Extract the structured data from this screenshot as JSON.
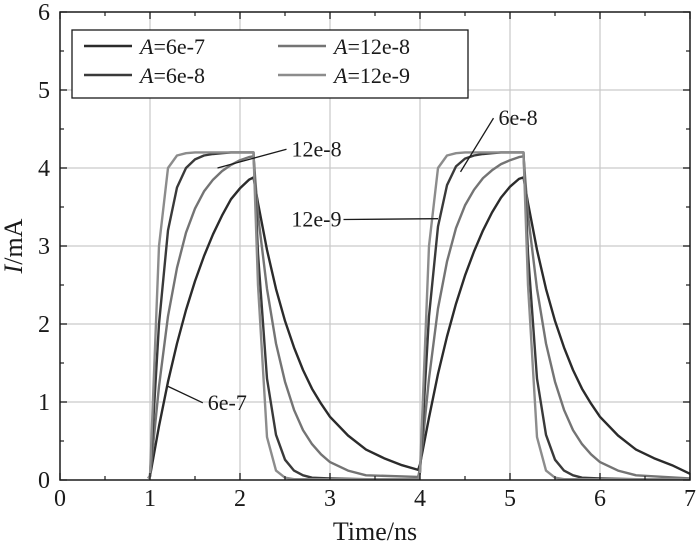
{
  "chart_data": {
    "type": "line",
    "title": "",
    "xlabel": "Time/ns",
    "ylabel_italic": "I",
    "ylabel_unit": "/mA",
    "xlim": [
      0,
      7
    ],
    "ylim": [
      0,
      6
    ],
    "x_ticks": [
      "0",
      "1",
      "2",
      "3",
      "4",
      "5",
      "6",
      "7"
    ],
    "y_ticks": [
      "0",
      "1",
      "2",
      "3",
      "4",
      "5",
      "6"
    ],
    "grid": true,
    "legend_placement": "top-left",
    "series": [
      {
        "name_var": "A",
        "name_val": "=6e-7",
        "color": "#2b2b2b",
        "x": [
          0.98,
          1.0,
          1.1,
          1.2,
          1.3,
          1.4,
          1.5,
          1.6,
          1.7,
          1.8,
          1.9,
          2.0,
          2.1,
          2.15,
          2.2,
          2.3,
          2.4,
          2.5,
          2.6,
          2.7,
          2.8,
          2.9,
          3.0,
          3.2,
          3.4,
          3.6,
          3.8,
          3.98,
          4.0,
          4.1,
          4.2,
          4.3,
          4.4,
          4.5,
          4.6,
          4.7,
          4.8,
          4.9,
          5.0,
          5.1,
          5.15,
          5.2,
          5.3,
          5.4,
          5.5,
          5.6,
          5.7,
          5.8,
          5.9,
          6.0,
          6.2,
          6.4,
          6.6,
          6.8,
          7.0
        ],
        "y": [
          0.02,
          0.05,
          0.69,
          1.26,
          1.75,
          2.18,
          2.55,
          2.87,
          3.15,
          3.39,
          3.6,
          3.74,
          3.85,
          3.88,
          3.55,
          2.95,
          2.45,
          2.04,
          1.7,
          1.41,
          1.17,
          0.98,
          0.81,
          0.57,
          0.39,
          0.28,
          0.19,
          0.13,
          0.2,
          0.8,
          1.36,
          1.84,
          2.26,
          2.62,
          2.93,
          3.2,
          3.43,
          3.62,
          3.76,
          3.86,
          3.88,
          3.55,
          2.95,
          2.45,
          2.04,
          1.7,
          1.41,
          1.17,
          0.98,
          0.81,
          0.57,
          0.39,
          0.28,
          0.19,
          0.08
        ]
      },
      {
        "name_var": "A",
        "name_val": "=12e-8",
        "color": "#747474",
        "x": [
          0.98,
          1.0,
          1.1,
          1.2,
          1.3,
          1.4,
          1.5,
          1.6,
          1.7,
          1.8,
          1.9,
          2.0,
          2.1,
          2.15,
          2.2,
          2.3,
          2.4,
          2.5,
          2.6,
          2.7,
          2.8,
          2.9,
          3.0,
          3.2,
          3.4,
          3.98,
          4.0,
          4.1,
          4.2,
          4.3,
          4.4,
          4.5,
          4.6,
          4.7,
          4.8,
          4.9,
          5.0,
          5.1,
          5.15,
          5.2,
          5.3,
          5.4,
          5.5,
          5.6,
          5.7,
          5.8,
          5.9,
          6.0,
          6.2,
          6.4,
          7.0
        ],
        "y": [
          0.02,
          0.05,
          1.2,
          2.1,
          2.72,
          3.17,
          3.48,
          3.7,
          3.85,
          3.96,
          4.04,
          4.1,
          4.14,
          4.15,
          3.4,
          2.45,
          1.75,
          1.26,
          0.9,
          0.64,
          0.46,
          0.33,
          0.23,
          0.12,
          0.06,
          0.04,
          0.15,
          1.3,
          2.2,
          2.8,
          3.23,
          3.52,
          3.72,
          3.87,
          3.97,
          4.05,
          4.1,
          4.14,
          4.15,
          3.4,
          2.45,
          1.75,
          1.26,
          0.9,
          0.64,
          0.46,
          0.33,
          0.23,
          0.12,
          0.06,
          0.02
        ]
      },
      {
        "name_var": "A",
        "name_val": "=6e-8",
        "color": "#3a3a3a",
        "x": [
          0.98,
          1.0,
          1.1,
          1.2,
          1.3,
          1.4,
          1.5,
          1.6,
          1.7,
          1.8,
          1.9,
          2.0,
          2.1,
          2.15,
          2.2,
          2.3,
          2.4,
          2.5,
          2.6,
          2.7,
          2.8,
          3.0,
          3.4,
          3.98,
          4.0,
          4.1,
          4.2,
          4.3,
          4.4,
          4.5,
          4.6,
          4.7,
          4.8,
          4.9,
          5.0,
          5.1,
          5.15,
          5.2,
          5.3,
          5.4,
          5.5,
          5.6,
          5.7,
          5.8,
          6.0,
          6.4,
          7.0
        ],
        "y": [
          0.02,
          0.05,
          2.0,
          3.2,
          3.75,
          4.0,
          4.11,
          4.16,
          4.18,
          4.19,
          4.2,
          4.2,
          4.2,
          4.2,
          2.9,
          1.3,
          0.58,
          0.26,
          0.12,
          0.06,
          0.03,
          0.02,
          0.01,
          0.01,
          0.1,
          2.1,
          3.25,
          3.78,
          4.02,
          4.12,
          4.16,
          4.18,
          4.19,
          4.2,
          4.2,
          4.2,
          4.2,
          2.9,
          1.3,
          0.58,
          0.26,
          0.12,
          0.06,
          0.03,
          0.02,
          0.01,
          0.01
        ]
      },
      {
        "name_var": "A",
        "name_val": "=12e-9",
        "color": "#8c8c8c",
        "x": [
          0.98,
          1.0,
          1.1,
          1.2,
          1.3,
          1.4,
          1.5,
          1.6,
          1.8,
          2.0,
          2.1,
          2.15,
          2.2,
          2.3,
          2.4,
          2.5,
          2.6,
          2.8,
          3.4,
          3.98,
          4.0,
          4.1,
          4.2,
          4.3,
          4.4,
          4.5,
          4.6,
          4.8,
          5.0,
          5.1,
          5.15,
          5.2,
          5.3,
          5.4,
          5.5,
          5.6,
          5.8,
          7.0
        ],
        "y": [
          0.02,
          0.05,
          3.0,
          4.0,
          4.16,
          4.19,
          4.2,
          4.2,
          4.2,
          4.2,
          4.2,
          4.2,
          2.5,
          0.55,
          0.12,
          0.03,
          0.01,
          0.01,
          0.01,
          0.01,
          0.1,
          3.0,
          4.0,
          4.16,
          4.19,
          4.2,
          4.2,
          4.2,
          4.2,
          4.2,
          4.2,
          2.5,
          0.55,
          0.12,
          0.03,
          0.01,
          0.01,
          0.01
        ]
      }
    ],
    "annotations": [
      {
        "text": "12e-8",
        "x": 2.55,
        "y": 4.15,
        "arrow_to": [
          1.75,
          4.0
        ]
      },
      {
        "text": "6e-8",
        "x": 4.85,
        "y": 4.55,
        "arrow_to": [
          4.45,
          3.95
        ]
      },
      {
        "text": "12e-9",
        "x": 3.15,
        "y": 3.25,
        "arrow_to": [
          4.2,
          3.35
        ]
      },
      {
        "text": "6e-7",
        "x": 1.62,
        "y": 0.9,
        "arrow_to": [
          1.2,
          1.2
        ]
      }
    ]
  }
}
